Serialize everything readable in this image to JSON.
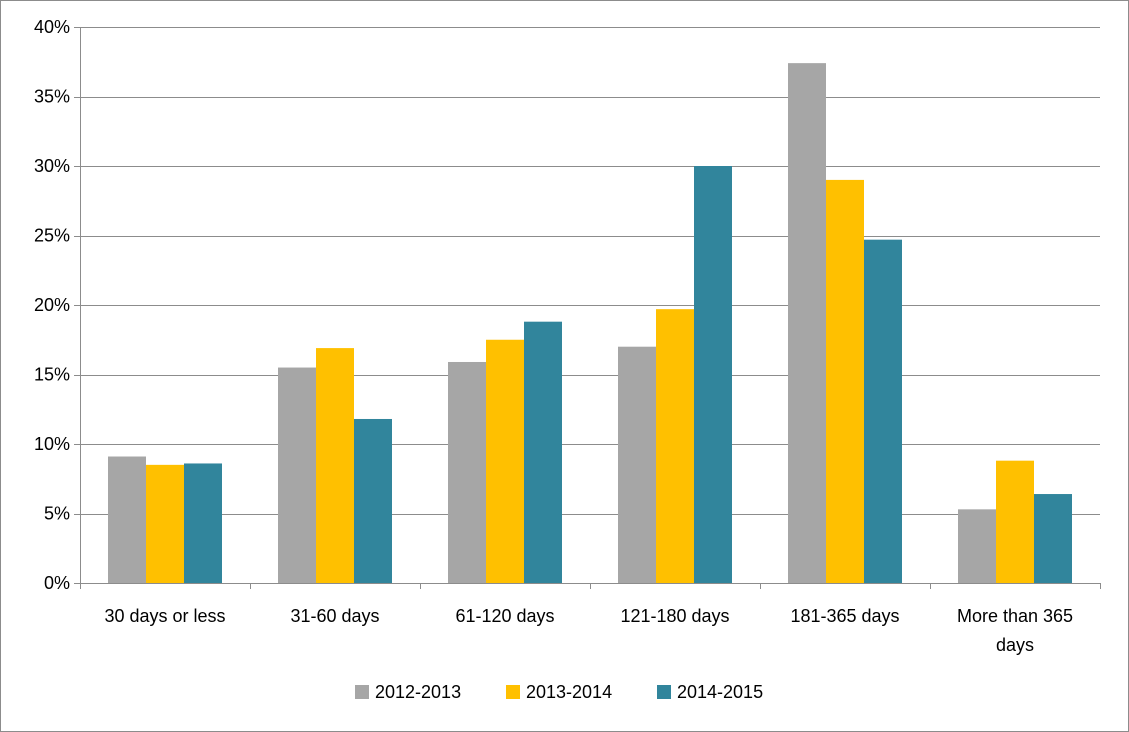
{
  "chart_data": {
    "type": "bar",
    "title": "",
    "xlabel": "",
    "ylabel": "",
    "ylim": [
      0,
      0.4
    ],
    "y_tick_values": [
      0,
      0.05,
      0.1,
      0.15,
      0.2,
      0.25,
      0.3,
      0.35,
      0.4
    ],
    "y_tick_labels": [
      "0%",
      "5%",
      "10%",
      "15%",
      "20%",
      "25%",
      "30%",
      "35%",
      "40%"
    ],
    "grid": "horizontal",
    "legend_position": "bottom",
    "categories": [
      [
        "30 days or less"
      ],
      [
        "31-60 days"
      ],
      [
        "61-120 days"
      ],
      [
        "121-180 days"
      ],
      [
        "181-365 days"
      ],
      [
        "More than 365",
        "days"
      ]
    ],
    "series": [
      {
        "name": "2012-2013",
        "color": "#a6a6a6",
        "values": [
          0.091,
          0.155,
          0.159,
          0.17,
          0.374,
          0.053
        ]
      },
      {
        "name": "2013-2014",
        "color": "#ffc000",
        "values": [
          0.085,
          0.169,
          0.175,
          0.197,
          0.29,
          0.088
        ]
      },
      {
        "name": "2014-2015",
        "color": "#31859c",
        "values": [
          0.086,
          0.118,
          0.188,
          0.3,
          0.247,
          0.064
        ]
      }
    ]
  }
}
